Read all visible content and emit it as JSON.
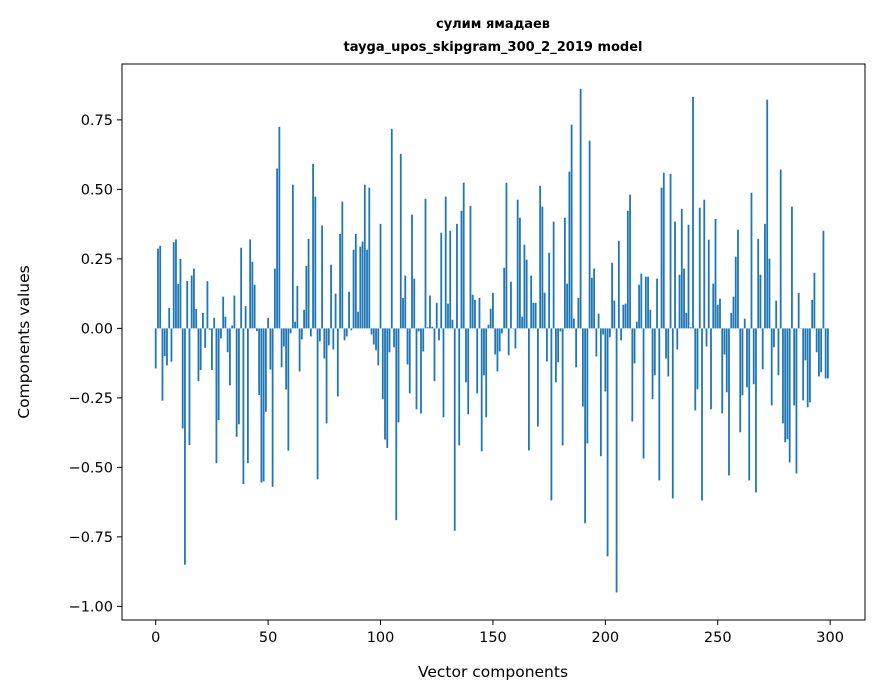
{
  "chart_data": {
    "type": "bar",
    "title": [
      "сулим ямадаев",
      "tayga_upos_skipgram_300_2_2019 model"
    ],
    "xlabel": "Vector components",
    "ylabel": "Components values",
    "xlim": [
      -15,
      315.5
    ],
    "ylim": [
      -1.049,
      0.951
    ],
    "xticks": [
      0,
      50,
      100,
      150,
      200,
      250,
      300
    ],
    "xtick_labels": [
      "0",
      "50",
      "100",
      "150",
      "200",
      "250",
      "300"
    ],
    "yticks": [
      -1.0,
      -0.75,
      -0.5,
      -0.25,
      0.0,
      0.25,
      0.5,
      0.75
    ],
    "ytick_labels": [
      "−1.00",
      "−0.75",
      "−0.50",
      "−0.25",
      "0.00",
      "0.25",
      "0.50",
      "0.75"
    ],
    "grid": false,
    "bar_color": "#1f77b4",
    "values": [
      -0.144,
      0.287,
      0.297,
      -0.26,
      -0.1,
      -0.133,
      0.074,
      -0.12,
      0.31,
      0.32,
      0.16,
      0.25,
      -0.36,
      -0.85,
      0.17,
      -0.42,
      0.19,
      0.215,
      0.07,
      -0.19,
      -0.15,
      0.056,
      -0.07,
      0.17,
      -0.005,
      -0.15,
      0.038,
      -0.485,
      -0.33,
      -0.036,
      0.114,
      0.042,
      -0.086,
      -0.205,
      0.01,
      0.118,
      -0.39,
      -0.345,
      0.29,
      -0.56,
      0.08,
      -0.485,
      0.32,
      0.24,
      0.157,
      -0.01,
      -0.24,
      -0.555,
      -0.55,
      -0.3,
      0.038,
      -0.148,
      -0.57,
      0.215,
      0.575,
      0.725,
      -0.14,
      -0.065,
      -0.22,
      -0.44,
      -0.018,
      0.517,
      0.024,
      0.153,
      -0.155,
      -0.04,
      0.067,
      0.225,
      0.322,
      -0.029,
      0.592,
      0.474,
      -0.543,
      -0.047,
      0.37,
      -0.108,
      -0.342,
      -0.061,
      0.229,
      -0.076,
      0.125,
      -0.245,
      0.34,
      0.456,
      -0.043,
      -0.029,
      0.132,
      -0.007,
      0.283,
      0.34,
      0.06,
      0.294,
      0.312,
      0.517,
      0.283,
      0.506,
      -0.022,
      -0.058,
      -0.079,
      -0.133,
      0.376,
      -0.255,
      -0.4,
      -0.43,
      -0.086,
      0.718,
      -0.068,
      -0.69,
      -0.338,
      0.628,
      0.11,
      0.19,
      -0.13,
      -0.234,
      0.409,
      0.179,
      -0.291,
      -0.011,
      -0.306,
      -0.083,
      0.466,
      0.004,
      0.118,
      0.006,
      -0.19,
      0.092,
      -0.043,
      0.344,
      -0.32,
      0.474,
      0.089,
      0.351,
      0.031,
      -0.728,
      0.376,
      -0.421,
      0.423,
      0.524,
      -0.194,
      -0.309,
      0.441,
      0.121,
      0.103,
      -0.234,
      0.11,
      -0.442,
      -0.169,
      -0.32,
      0.013,
      0.071,
      0.128,
      -0.094,
      -0.155,
      -0.083,
      -0.018,
      0.218,
      0.524,
      -0.097,
      0.168,
      0.0,
      -0.072,
      0.463,
      0.398,
      0.042,
      0.301,
      0.247,
      -0.439,
      0.19,
      0.092,
      0.092,
      -0.353,
      0.513,
      0.438,
      0.128,
      -0.119,
      0.272,
      -0.619,
      0.384,
      -0.194,
      -0.122,
      -0.011,
      -0.421,
      0.398,
      0.161,
      0.564,
      0.733,
      0.035,
      -0.14,
      0.11,
      0.862,
      -0.281,
      -0.701,
      -0.414,
      0.675,
      0.182,
      0.215,
      -0.101,
      0.053,
      -0.46,
      -0.022,
      -0.227,
      -0.82,
      -0.032,
      0.236,
      0.1,
      -0.95,
      0.315,
      -0.043,
      0.085,
      0.089,
      0.423,
      0.481,
      -0.335,
      -0.126,
      0.024,
      0.157,
      0.197,
      -0.468,
      0.186,
      0.186,
      0.067,
      -0.255,
      -0.169,
      0.179,
      -0.547,
      0.506,
      0.56,
      -0.108,
      -0.173,
      0.556,
      -0.612,
      0.384,
      -0.076,
      0.193,
      0.43,
      0.215,
      0.056,
      0.373,
      0.004,
      0.833,
      -0.295,
      -0.219,
      0.434,
      -0.619,
      0.463,
      -0.065,
      0.319,
      -0.291,
      0.161,
      0.394,
      0.085,
      0.107,
      -0.306,
      -0.094,
      -0.23,
      -0.529,
      0.056,
      0.114,
      0.258,
      0.355,
      -0.374,
      -0.241,
      0.035,
      -0.212,
      -0.547,
      0.488,
      -0.201,
      -0.59,
      0.322,
      0.193,
      -0.147,
      0.376,
      0.823,
      0.251,
      -0.277,
      -0.068,
      0.1,
      -0.169,
      0.571,
      -0.342,
      -0.41,
      -0.399,
      -0.482,
      0.438,
      -0.277,
      -0.522,
      0.128,
      0.0,
      -0.259,
      -0.115,
      -0.284,
      -0.266,
      0.103,
      0.2,
      -0.086,
      -0.173,
      -0.158,
      0.351,
      -0.18,
      -0.18
    ]
  }
}
